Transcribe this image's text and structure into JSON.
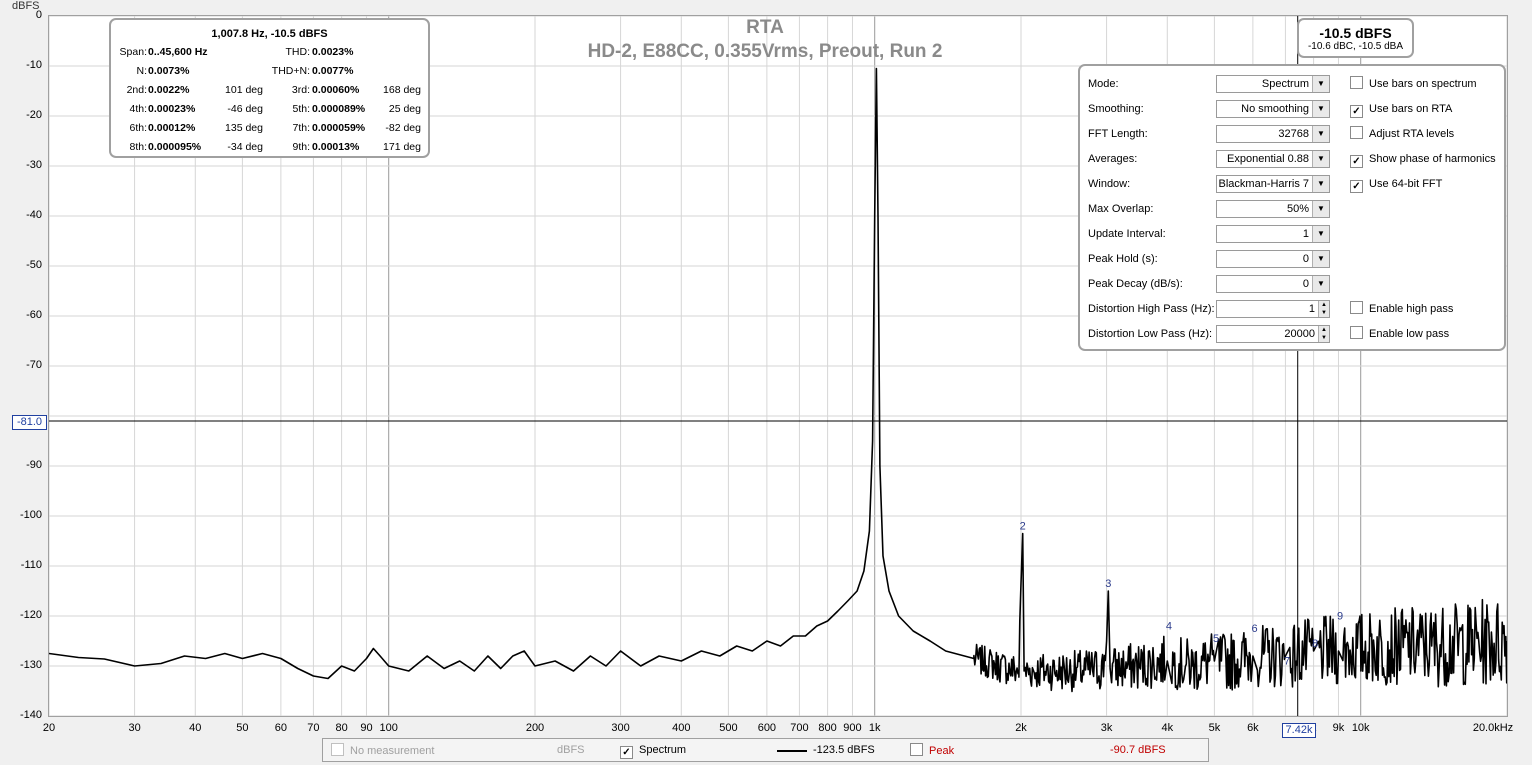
{
  "chart_data": {
    "type": "line",
    "title": "RTA",
    "subtitle": "HD-2, E88CC, 0.355Vrms, Preout, Run 2",
    "ylabel": "dBFS",
    "xscale": "log",
    "xlim": [
      20,
      20000
    ],
    "ylim": [
      -140,
      0
    ],
    "xticks": [
      {
        "v": 20,
        "label": "20"
      },
      {
        "v": 30,
        "label": "30"
      },
      {
        "v": 40,
        "label": "40"
      },
      {
        "v": 50,
        "label": "50"
      },
      {
        "v": 60,
        "label": "60"
      },
      {
        "v": 70,
        "label": "70"
      },
      {
        "v": 80,
        "label": "80"
      },
      {
        "v": 90,
        "label": "90"
      },
      {
        "v": 100,
        "label": "100"
      },
      {
        "v": 200,
        "label": "200"
      },
      {
        "v": 300,
        "label": "300"
      },
      {
        "v": 400,
        "label": "400"
      },
      {
        "v": 500,
        "label": "500"
      },
      {
        "v": 600,
        "label": "600"
      },
      {
        "v": 700,
        "label": "700"
      },
      {
        "v": 800,
        "label": "800"
      },
      {
        "v": 900,
        "label": "900"
      },
      {
        "v": 1000,
        "label": "1k"
      },
      {
        "v": 2000,
        "label": "2k"
      },
      {
        "v": 3000,
        "label": "3k"
      },
      {
        "v": 4000,
        "label": "4k"
      },
      {
        "v": 5000,
        "label": "5k"
      },
      {
        "v": 6000,
        "label": "6k"
      },
      {
        "v": 8000,
        "label": "k"
      },
      {
        "v": 9000,
        "label": "9k"
      },
      {
        "v": 10000,
        "label": "10k"
      },
      {
        "v": 20000,
        "label": "20.0kHz"
      }
    ],
    "yticks": [
      0,
      -10,
      -20,
      -30,
      -40,
      -50,
      -60,
      -70,
      -90,
      -100,
      -110,
      -120,
      -130,
      -140
    ],
    "grid": true,
    "series": [
      {
        "name": "Spectrum",
        "color": "#000000",
        "points": [
          [
            20,
            -127.5
          ],
          [
            23,
            -128.3
          ],
          [
            26,
            -128.6
          ],
          [
            30,
            -130
          ],
          [
            34,
            -129.5
          ],
          [
            38,
            -128
          ],
          [
            42,
            -128.5
          ],
          [
            46,
            -127.5
          ],
          [
            50,
            -128.5
          ],
          [
            55,
            -127.5
          ],
          [
            60,
            -128.5
          ],
          [
            65,
            -130.5
          ],
          [
            70,
            -132
          ],
          [
            75,
            -132.5
          ],
          [
            80,
            -130
          ],
          [
            85,
            -131
          ],
          [
            90,
            -128.5
          ],
          [
            93,
            -126.5
          ],
          [
            96,
            -128
          ],
          [
            100,
            -130
          ],
          [
            110,
            -131
          ],
          [
            120,
            -128
          ],
          [
            130,
            -130.5
          ],
          [
            140,
            -129
          ],
          [
            150,
            -131
          ],
          [
            160,
            -128
          ],
          [
            170,
            -130.5
          ],
          [
            180,
            -128
          ],
          [
            190,
            -127
          ],
          [
            200,
            -130
          ],
          [
            220,
            -129
          ],
          [
            240,
            -131
          ],
          [
            260,
            -128
          ],
          [
            280,
            -130
          ],
          [
            300,
            -127
          ],
          [
            330,
            -130
          ],
          [
            360,
            -128
          ],
          [
            400,
            -129
          ],
          [
            440,
            -127
          ],
          [
            480,
            -128
          ],
          [
            520,
            -126
          ],
          [
            560,
            -127
          ],
          [
            600,
            -125
          ],
          [
            640,
            -126
          ],
          [
            680,
            -124
          ],
          [
            720,
            -124
          ],
          [
            760,
            -122
          ],
          [
            800,
            -121
          ],
          [
            840,
            -119
          ],
          [
            880,
            -117
          ],
          [
            920,
            -115
          ],
          [
            950,
            -111
          ],
          [
            975,
            -103
          ],
          [
            990,
            -85
          ],
          [
            1000,
            -40
          ],
          [
            1008,
            -10.5
          ],
          [
            1016,
            -40
          ],
          [
            1025,
            -90
          ],
          [
            1040,
            -108
          ],
          [
            1070,
            -115
          ],
          [
            1120,
            -120
          ],
          [
            1200,
            -123
          ],
          [
            1300,
            -125
          ],
          [
            1400,
            -127
          ],
          [
            1600,
            -128.5
          ],
          [
            1800,
            -130
          ],
          [
            1980,
            -131
          ],
          [
            2000,
            -113.5
          ],
          [
            2016,
            -103.5
          ],
          [
            2030,
            -131
          ],
          [
            2300,
            -131
          ],
          [
            2600,
            -131
          ],
          [
            2950,
            -130.5
          ],
          [
            3000,
            -125
          ],
          [
            3024,
            -115
          ],
          [
            3050,
            -130.5
          ],
          [
            3500,
            -130
          ],
          [
            4000,
            -129
          ],
          [
            4500,
            -130
          ],
          [
            5000,
            -129
          ],
          [
            5500,
            -129
          ],
          [
            6000,
            -128
          ],
          [
            7000,
            -128
          ],
          [
            8000,
            -127
          ],
          [
            9000,
            -127
          ],
          [
            10000,
            -126.5
          ],
          [
            12000,
            -126
          ],
          [
            14000,
            -126
          ],
          [
            17000,
            -125.5
          ],
          [
            20000,
            -125
          ]
        ]
      }
    ],
    "noise": {
      "from_hz": 1600,
      "to_hz": 20000,
      "spread_db": 6
    },
    "harmonic_markers": [
      {
        "label": "2",
        "hz": 2016,
        "db": -103.5
      },
      {
        "label": "3",
        "hz": 3024,
        "db": -115
      },
      {
        "label": "4",
        "hz": 4031,
        "db": -123.5
      },
      {
        "label": "5",
        "hz": 5039,
        "db": -126
      },
      {
        "label": "6",
        "hz": 6047,
        "db": -124
      },
      {
        "label": "7",
        "hz": 7055,
        "db": -130.5
      },
      {
        "label": "8",
        "hz": 8062,
        "db": -127
      },
      {
        "label": "9",
        "hz": 9070,
        "db": -121.5
      }
    ],
    "cursor": {
      "hz": 7420,
      "db": -81.0,
      "x_label": "7.42k",
      "y_label": "-81.0"
    }
  },
  "distortion_panel": {
    "header": "1,007.8 Hz, -10.5 dBFS",
    "span_label": "Span:",
    "span_value": "0..45,600 Hz",
    "thd_label": "THD:",
    "thd_value": "0.0023%",
    "n_label": "N:",
    "n_value": "0.0073%",
    "thdn_label": "THD+N:",
    "thdn_value": "0.0077%",
    "harmonics": [
      {
        "l1": "2nd:",
        "v1": "0.0022%",
        "p1": "101 deg",
        "l2": "3rd:",
        "v2": "0.00060%",
        "p2": "168 deg"
      },
      {
        "l1": "4th:",
        "v1": "0.00023%",
        "p1": "-46 deg",
        "l2": "5th:",
        "v2": "0.000089%",
        "p2": "25 deg"
      },
      {
        "l1": "6th:",
        "v1": "0.00012%",
        "p1": "135 deg",
        "l2": "7th:",
        "v2": "0.000059%",
        "p2": "-82 deg"
      },
      {
        "l1": "8th:",
        "v1": "0.000095%",
        "p1": "-34 deg",
        "l2": "9th:",
        "v2": "0.00013%",
        "p2": "171 deg"
      }
    ]
  },
  "level_box": {
    "main": "-10.5 dBFS",
    "sub": "-10.6 dBC, -10.5 dBA"
  },
  "settings": {
    "rows": [
      {
        "label": "Mode:",
        "value": "Spectrum",
        "kind": "select"
      },
      {
        "label": "Smoothing:",
        "value": "No  smoothing",
        "kind": "select"
      },
      {
        "label": "FFT Length:",
        "value": "32768",
        "kind": "select"
      },
      {
        "label": "Averages:",
        "value": "Exponential 0.88",
        "kind": "select"
      },
      {
        "label": "Window:",
        "value": "Blackman-Harris 7",
        "kind": "select"
      },
      {
        "label": "Max Overlap:",
        "value": "50%",
        "kind": "select"
      },
      {
        "label": "Update Interval:",
        "value": "1",
        "kind": "select"
      },
      {
        "label": "Peak Hold (s):",
        "value": "0",
        "kind": "select"
      },
      {
        "label": "Peak Decay (dB/s):",
        "value": "0",
        "kind": "select"
      },
      {
        "label": "Distortion High Pass (Hz):",
        "value": "1",
        "kind": "spin"
      },
      {
        "label": "Distortion Low Pass (Hz):",
        "value": "20000",
        "kind": "spin"
      }
    ],
    "checkboxes": [
      {
        "label": "Use bars on spectrum",
        "checked": false,
        "row": 0
      },
      {
        "label": "Use bars on RTA",
        "checked": true,
        "row": 1
      },
      {
        "label": "Adjust RTA levels",
        "checked": false,
        "row": 2
      },
      {
        "label": "Show phase of harmonics",
        "checked": true,
        "row": 3
      },
      {
        "label": "Use 64-bit FFT",
        "checked": true,
        "row": 4
      },
      {
        "label": "Enable high pass",
        "checked": false,
        "row": 9
      },
      {
        "label": "Enable low pass",
        "checked": false,
        "row": 10
      }
    ]
  },
  "legend": {
    "no_measurement": "No measurement",
    "no_measurement_unit": "dBFS",
    "spectrum": "Spectrum",
    "spectrum_value": "-123.5 dBFS",
    "peak": "Peak",
    "peak_value": "-90.7 dBFS"
  }
}
